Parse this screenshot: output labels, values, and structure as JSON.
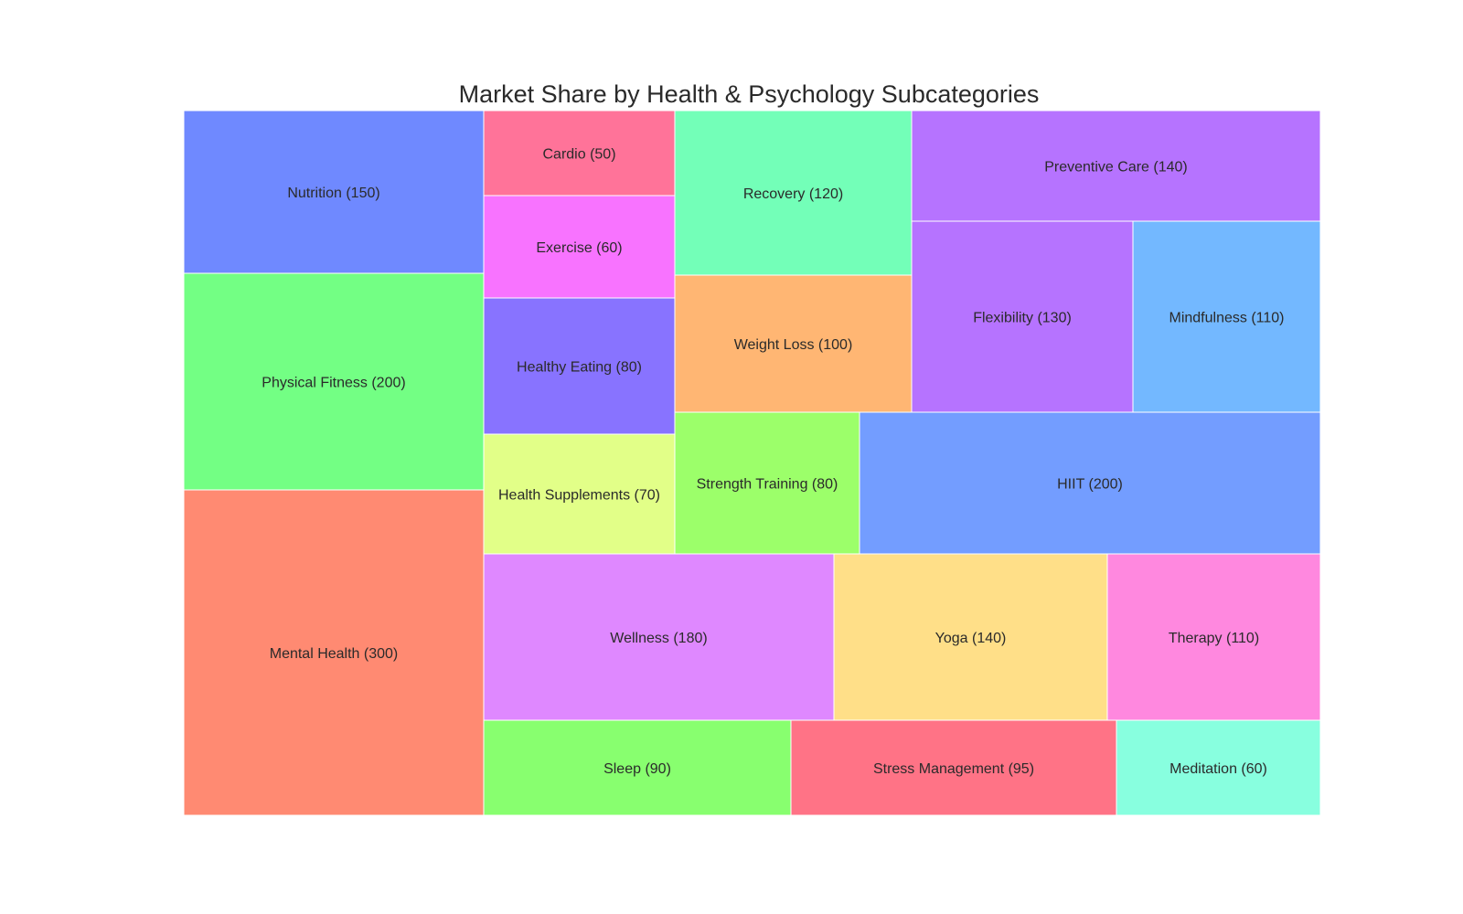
{
  "chart_data": {
    "type": "treemap",
    "title": "Market Share by Health & Psychology Subcategories",
    "items": [
      {
        "name": "Nutrition",
        "value": 150,
        "label": "Nutrition (150)",
        "color": "#6f89ff"
      },
      {
        "name": "Physical Fitness",
        "value": 200,
        "label": "Physical Fitness (200)",
        "color": "#73ff84"
      },
      {
        "name": "Mental Health",
        "value": 300,
        "label": "Mental Health (300)",
        "color": "#ff8a72"
      },
      {
        "name": "Cardio",
        "value": 50,
        "label": "Cardio (50)",
        "color": "#ff7399"
      },
      {
        "name": "Exercise",
        "value": 60,
        "label": "Exercise (60)",
        "color": "#f873ff"
      },
      {
        "name": "Healthy Eating",
        "value": 80,
        "label": "Healthy Eating (80)",
        "color": "#8873ff"
      },
      {
        "name": "Health Supplements",
        "value": 70,
        "label": "Health Supplements (70)",
        "color": "#e2ff88"
      },
      {
        "name": "Recovery",
        "value": 120,
        "label": "Recovery (120)",
        "color": "#73ffb8"
      },
      {
        "name": "Weight Loss",
        "value": 100,
        "label": "Weight Loss (100)",
        "color": "#ffb673"
      },
      {
        "name": "Preventive Care",
        "value": 140,
        "label": "Preventive Care (140)",
        "color": "#b673ff"
      },
      {
        "name": "Flexibility",
        "value": 130,
        "label": "Flexibility (130)",
        "color": "#b673ff"
      },
      {
        "name": "Mindfulness",
        "value": 110,
        "label": "Mindfulness (110)",
        "color": "#73b8ff"
      },
      {
        "name": "Strength Training",
        "value": 80,
        "label": "Strength Training (80)",
        "color": "#9cff6a"
      },
      {
        "name": "HIIT",
        "value": 200,
        "label": "HIIT (200)",
        "color": "#739dff"
      },
      {
        "name": "Wellness",
        "value": 180,
        "label": "Wellness (180)",
        "color": "#df88ff"
      },
      {
        "name": "Yoga",
        "value": 140,
        "label": "Yoga (140)",
        "color": "#ffdf88"
      },
      {
        "name": "Therapy",
        "value": 110,
        "label": "Therapy (110)",
        "color": "#ff88df"
      },
      {
        "name": "Sleep",
        "value": 90,
        "label": "Sleep (90)",
        "color": "#88ff6f"
      },
      {
        "name": "Stress Management",
        "value": 95,
        "label": "Stress Management (95)",
        "color": "#ff7386"
      },
      {
        "name": "Meditation",
        "value": 60,
        "label": "Meditation (60)",
        "color": "#88ffdf"
      }
    ]
  }
}
